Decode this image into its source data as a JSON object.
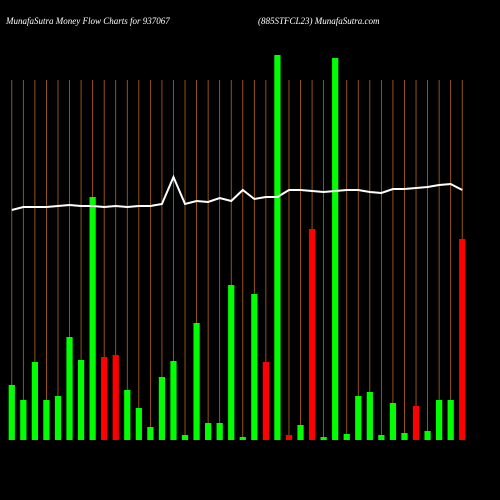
{
  "chart_data": {
    "type": "bar",
    "title": "MunafaSutra  Money Flow  Charts for 937067",
    "subtitle": "(885STFCL23) MunafaSutra.com",
    "categories": [
      null,
      null,
      null,
      null,
      null,
      null,
      null,
      null,
      null,
      null,
      null,
      null,
      null,
      null,
      null,
      null,
      null,
      null,
      null,
      null,
      null,
      null,
      null,
      null,
      null,
      null,
      null,
      null,
      null,
      null,
      null,
      null,
      null,
      null,
      null,
      null,
      null,
      null,
      null,
      null
    ],
    "values": [
      55,
      40,
      78,
      40,
      44,
      103,
      80,
      243,
      83,
      85,
      50,
      32,
      13,
      63,
      79,
      5,
      117,
      17,
      17,
      155,
      3,
      146,
      78,
      385,
      5,
      15,
      211,
      3,
      382,
      6,
      44,
      48,
      5,
      37,
      7,
      34,
      9,
      40,
      40,
      201
    ],
    "bar_colors": [
      "#00ff00",
      "#00ff00",
      "#00ff00",
      "#00ff00",
      "#00ff00",
      "#00ff00",
      "#00ff00",
      "#00ff00",
      "#ff0000",
      "#ff0000",
      "#00ff00",
      "#00ff00",
      "#00ff00",
      "#00ff00",
      "#00ff00",
      "#00ff00",
      "#00ff00",
      "#00ff00",
      "#00ff00",
      "#00ff00",
      "#00ff00",
      "#00ff00",
      "#ff0000",
      "#00ff00",
      "#ff0000",
      "#00ff00",
      "#ff0000",
      "#00ff00",
      "#00ff00",
      "#00ff00",
      "#00ff00",
      "#00ff00",
      "#00ff00",
      "#00ff00",
      "#00ff00",
      "#ff0000",
      "#00ff00",
      "#00ff00",
      "#00ff00",
      "#ff0000"
    ],
    "line": {
      "color": "#ffffff",
      "values": [
        230,
        233,
        233,
        233,
        234,
        235,
        234,
        234,
        233,
        234,
        233,
        234,
        234,
        236,
        263,
        236,
        239,
        238,
        242,
        239,
        250,
        241,
        243,
        243,
        250,
        250,
        249,
        248,
        249,
        250,
        250,
        248,
        247,
        251,
        251,
        252,
        253,
        255,
        256,
        250
      ]
    },
    "ylim": [
      0,
      385
    ],
    "grid": true,
    "grid_color": "#b8661c"
  }
}
